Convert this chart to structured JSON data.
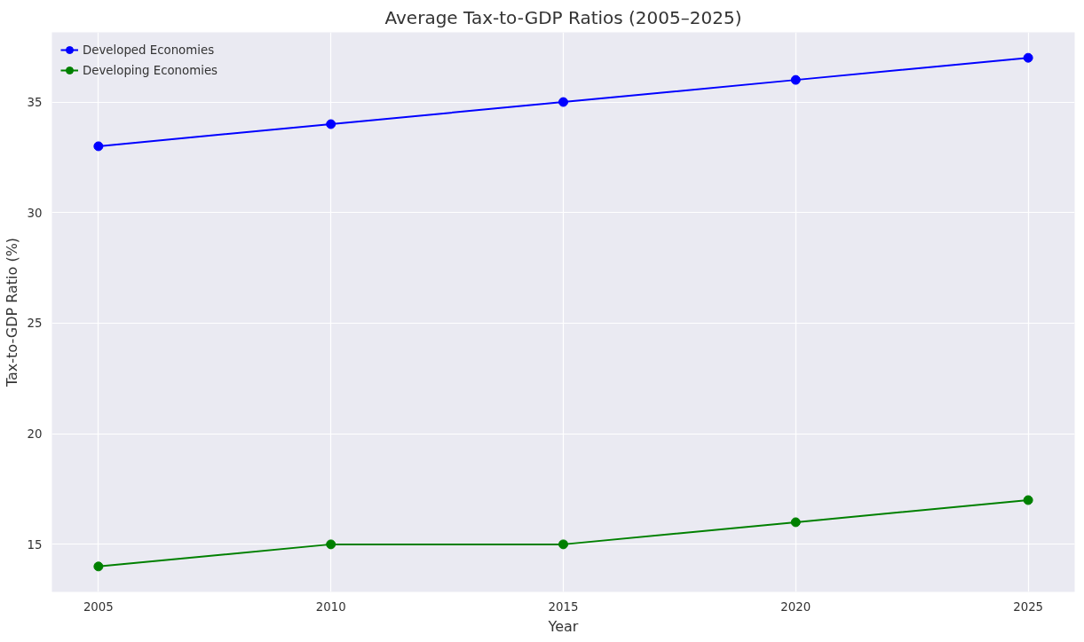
{
  "chart_data": {
    "type": "line",
    "title": "Average Tax-to-GDP Ratios (2005–2025)",
    "xlabel": "Year",
    "ylabel": "Tax-to-GDP Ratio (%)",
    "x": [
      2005,
      2010,
      2015,
      2020,
      2025
    ],
    "series": [
      {
        "name": "Developed Economies",
        "color": "#0000ff",
        "values": [
          33,
          34,
          35,
          36,
          37
        ]
      },
      {
        "name": "Developing Economies",
        "color": "#008000",
        "values": [
          14,
          15,
          15,
          16,
          17
        ]
      }
    ],
    "xlim": [
      2004,
      2026
    ],
    "ylim": [
      12.85,
      38.15
    ],
    "xticks": [
      2005,
      2010,
      2015,
      2020,
      2025
    ],
    "yticks": [
      15,
      20,
      25,
      30,
      35
    ],
    "grid": true,
    "legend": "top left",
    "marker": "circle",
    "line_style": "solid"
  }
}
